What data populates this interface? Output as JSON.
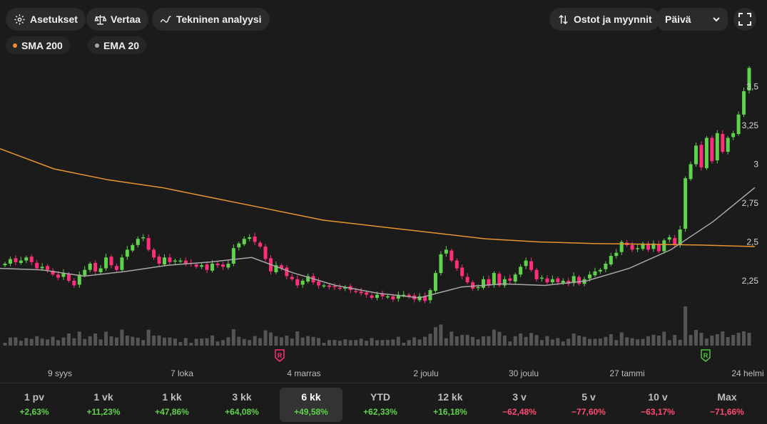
{
  "toolbar": {
    "settings_label": "Asetukset",
    "compare_label": "Vertaa",
    "technical_label": "Tekninen analyysi",
    "trades_label": "Ostot ja myynnit",
    "interval_value": "Päivä"
  },
  "legend": {
    "sma": {
      "label": "SMA 200",
      "color": "#e8952e"
    },
    "ema": {
      "label": "EMA 20",
      "color": "#a8a8a8"
    }
  },
  "colors": {
    "up": "#5fd34b",
    "down": "#ff2e7a",
    "volume": "#555555",
    "bg": "#1b1b1b"
  },
  "markers": [
    {
      "label": "R",
      "date": "4 marras",
      "color": "#ff2e7a"
    },
    {
      "label": "R",
      "date": "24 helmi",
      "color": "#4fc43f"
    }
  ],
  "chart_data": {
    "type": "candlestick",
    "y_ticks": [
      "3,5",
      "3,25",
      "3",
      "2,75",
      "2,5",
      "2,25"
    ],
    "y_tick_values": [
      3.5,
      3.25,
      3.0,
      2.75,
      2.5,
      2.25
    ],
    "x_ticks": [
      "9 syys",
      "7 loka",
      "4 marras",
      "2 joulu",
      "30 joulu",
      "27 tammi",
      "24 helmi"
    ],
    "closes": [
      2.36,
      2.39,
      2.37,
      2.38,
      2.4,
      2.37,
      2.33,
      2.34,
      2.32,
      2.29,
      2.27,
      2.3,
      2.25,
      2.22,
      2.29,
      2.32,
      2.36,
      2.31,
      2.33,
      2.4,
      2.35,
      2.32,
      2.4,
      2.45,
      2.48,
      2.52,
      2.53,
      2.45,
      2.4,
      2.36,
      2.4,
      2.37,
      2.38,
      2.38,
      2.36,
      2.36,
      2.34,
      2.35,
      2.32,
      2.36,
      2.35,
      2.34,
      2.36,
      2.46,
      2.49,
      2.52,
      2.53,
      2.5,
      2.47,
      2.39,
      2.31,
      2.35,
      2.33,
      2.28,
      2.26,
      2.22,
      2.25,
      2.28,
      2.24,
      2.22,
      2.22,
      2.21,
      2.21,
      2.2,
      2.21,
      2.19,
      2.18,
      2.17,
      2.16,
      2.14,
      2.16,
      2.15,
      2.15,
      2.13,
      2.16,
      2.16,
      2.15,
      2.13,
      2.15,
      2.12,
      2.19,
      2.3,
      2.42,
      2.45,
      2.38,
      2.33,
      2.28,
      2.24,
      2.2,
      2.21,
      2.26,
      2.22,
      2.3,
      2.22,
      2.26,
      2.25,
      2.29,
      2.34,
      2.38,
      2.32,
      2.26,
      2.27,
      2.24,
      2.26,
      2.24,
      2.25,
      2.23,
      2.28,
      2.23,
      2.26,
      2.29,
      2.31,
      2.32,
      2.36,
      2.41,
      2.43,
      2.5,
      2.48,
      2.45,
      2.46,
      2.49,
      2.45,
      2.49,
      2.44,
      2.51,
      2.53,
      2.48,
      2.58,
      2.91,
      3.0,
      3.12,
      2.98,
      3.17,
      3.02,
      3.2,
      3.08,
      3.17,
      3.2,
      3.32,
      3.47,
      3.62
    ],
    "sma200": [
      3.1,
      2.97,
      2.9,
      2.85,
      2.78,
      2.71,
      2.64,
      2.6,
      2.56,
      2.52,
      2.5,
      2.49,
      2.485,
      2.48,
      2.47
    ],
    "ema20": [
      2.33,
      2.32,
      2.28,
      2.31,
      2.35,
      2.37,
      2.4,
      2.3,
      2.22,
      2.17,
      2.14,
      2.21,
      2.23,
      2.22,
      2.25,
      2.33,
      2.45,
      2.63,
      2.85
    ]
  },
  "periods": [
    {
      "label": "1 pv",
      "change": "+2,63%",
      "dir": "pos"
    },
    {
      "label": "1 vk",
      "change": "+11,23%",
      "dir": "pos"
    },
    {
      "label": "1 kk",
      "change": "+47,86%",
      "dir": "pos"
    },
    {
      "label": "3 kk",
      "change": "+64,08%",
      "dir": "pos"
    },
    {
      "label": "6 kk",
      "change": "+49,58%",
      "dir": "pos",
      "active": true
    },
    {
      "label": "YTD",
      "change": "+62,33%",
      "dir": "pos"
    },
    {
      "label": "12 kk",
      "change": "+16,18%",
      "dir": "pos"
    },
    {
      "label": "3 v",
      "change": "−62,48%",
      "dir": "neg"
    },
    {
      "label": "5 v",
      "change": "−77,60%",
      "dir": "neg"
    },
    {
      "label": "10 v",
      "change": "−63,17%",
      "dir": "neg"
    },
    {
      "label": "Max",
      "change": "−71,66%",
      "dir": "neg"
    }
  ]
}
